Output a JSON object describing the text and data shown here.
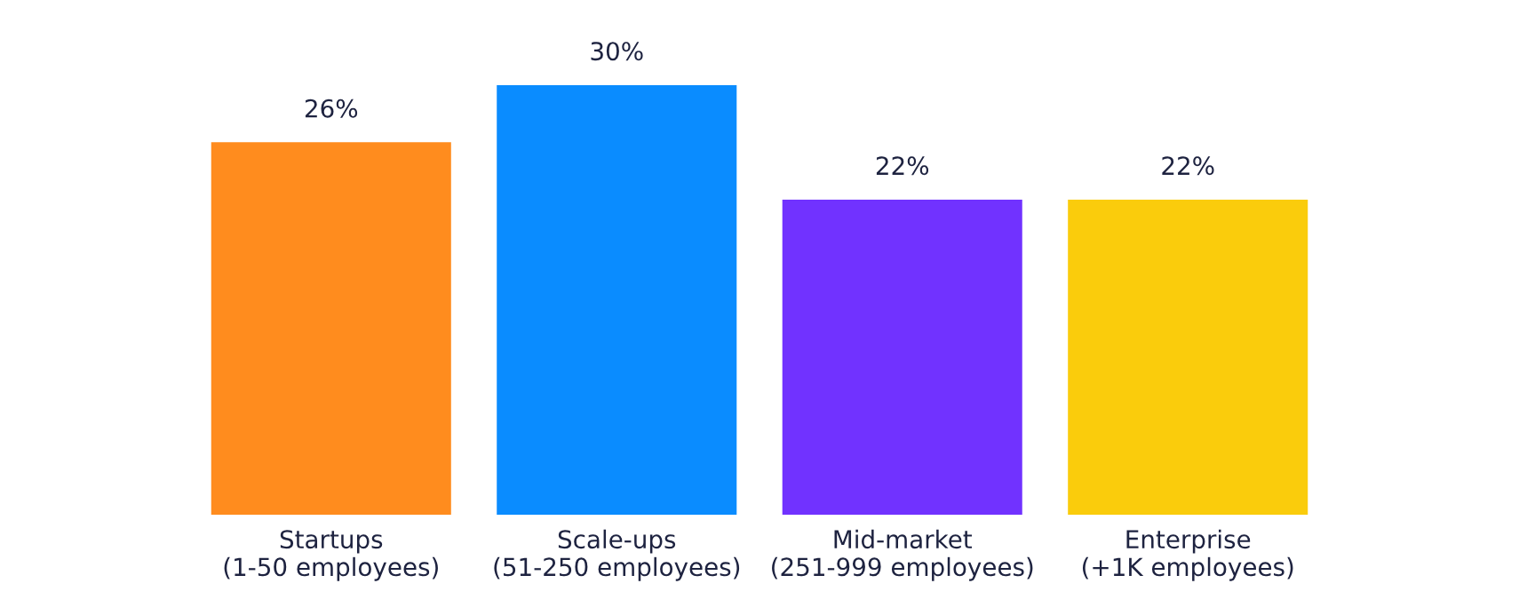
{
  "chart_data": {
    "type": "bar",
    "categories": [
      "Startups\n(1-50 employees)",
      "Scale-ups\n(51-250 employees)",
      "Mid-market\n(251-999 employees)",
      "Enterprise\n(+1K employees)"
    ],
    "values": [
      26,
      30,
      22,
      22
    ],
    "colors": [
      "#ff8c1e",
      "#0a8cff",
      "#7132ff",
      "#facc0c"
    ],
    "value_labels": [
      "26%",
      "30%",
      "22%",
      "22%"
    ],
    "grid": false,
    "legend": false
  }
}
